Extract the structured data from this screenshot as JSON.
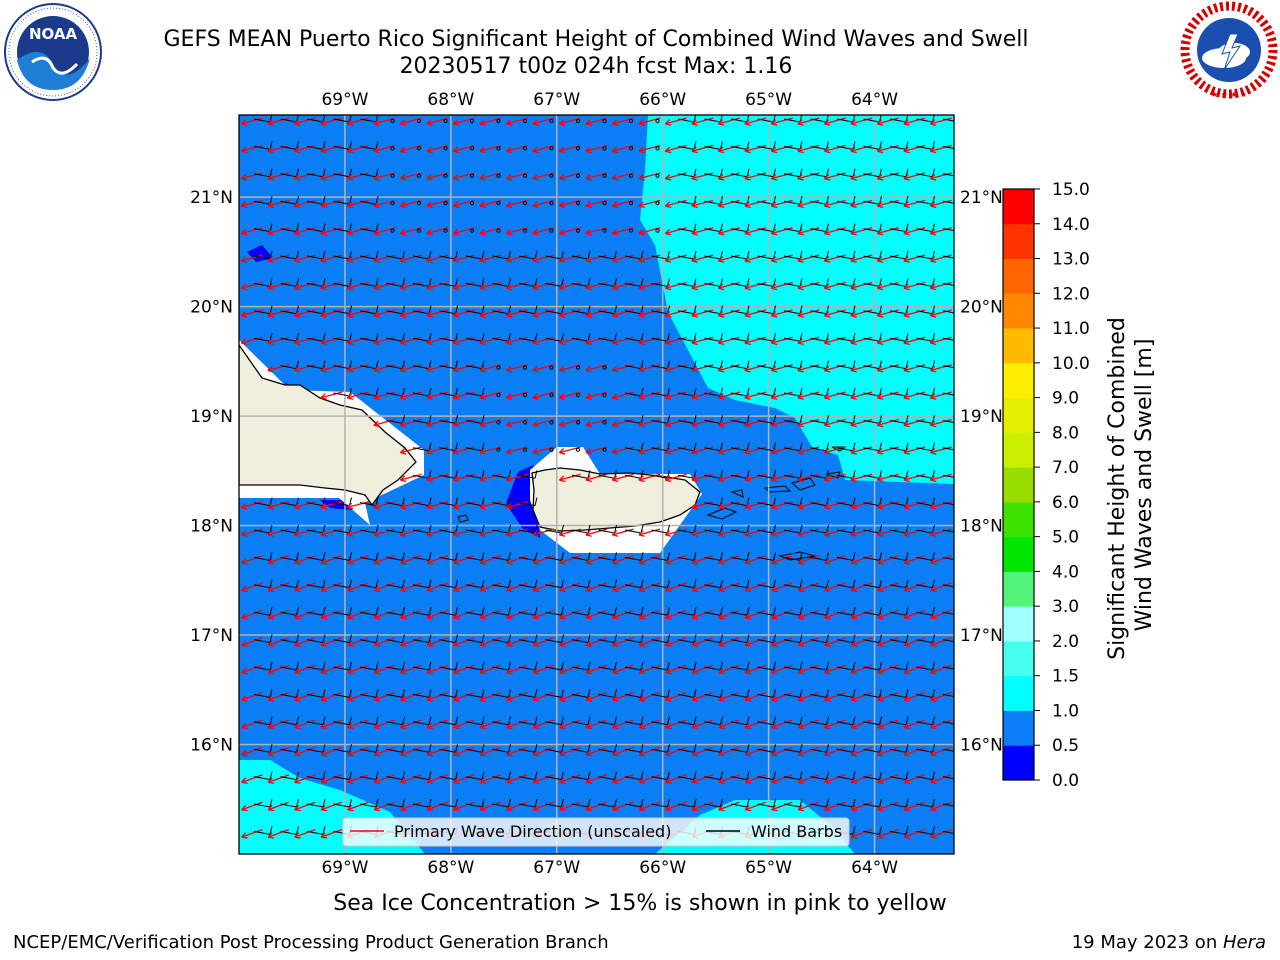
{
  "title_line1": "GEFS MEAN Puerto Rico Significant Height of Combined Wind Waves and Swell",
  "title_line2": "20230517 t00z 024h fcst   Max: 1.16",
  "logos": {
    "left": "noaa-logo",
    "right": "national-weather-service-logo",
    "left_text": "NOAA",
    "right_text": "NATIONAL WEATHER SERVICE"
  },
  "map": {
    "lon_ticks": [
      "69°W",
      "68°W",
      "67°W",
      "66°W",
      "65°W",
      "64°W"
    ],
    "lat_ticks": [
      "21°N",
      "20°N",
      "19°N",
      "18°N",
      "17°N",
      "16°N"
    ],
    "lon_values": [
      -69,
      -68,
      -67,
      -66,
      -65,
      -64
    ],
    "lat_values": [
      21,
      20,
      19,
      18,
      17,
      16
    ],
    "lon_range": [
      -70.0,
      -63.25
    ],
    "lat_range": [
      15.0,
      21.75
    ]
  },
  "legend": {
    "primary_wave": "Primary Wave Direction (unscaled)",
    "wind_barbs": "Wind Barbs"
  },
  "colorbar": {
    "label_line1": "Significant Height of Combined",
    "label_line2": "Wind Waves and Swell [m]",
    "levels": [
      0.0,
      0.5,
      1.0,
      1.5,
      2.0,
      3.0,
      4.0,
      5.0,
      6.0,
      7.0,
      8.0,
      9.0,
      10.0,
      11.0,
      12.0,
      13.0,
      14.0,
      15.0
    ],
    "tick_labels": [
      "0.0",
      "0.5",
      "1.0",
      "1.5",
      "2.0",
      "3.0",
      "4.0",
      "5.0",
      "6.0",
      "7.0",
      "8.0",
      "9.0",
      "10.0",
      "11.0",
      "12.0",
      "13.0",
      "14.0",
      "15.0"
    ],
    "colors": [
      "#0000ff",
      "#0a7ff5",
      "#00ffff",
      "#44ffee",
      "#a0ffff",
      "#52f57a",
      "#00e600",
      "#3fe100",
      "#99dd00",
      "#ccee00",
      "#e6ee00",
      "#ffee00",
      "#ffbb00",
      "#ff8800",
      "#ff6600",
      "#ff3300",
      "#ff0000"
    ]
  },
  "colors": {
    "sea_main": "#0a7ff5",
    "sea_low": "#0000ff",
    "sea_mid": "#00ffff",
    "land": "#f0eedc",
    "wave_arrow": "#ff0000",
    "barb": "#000000"
  },
  "subcaption": "Sea Ice Concentration > 15% is shown in pink to yellow",
  "footer_left": "NCEP/EMC/Verification Post Processing Product Generation Branch",
  "footer_date": "19 May 2023 on ",
  "footer_host": "Hera"
}
